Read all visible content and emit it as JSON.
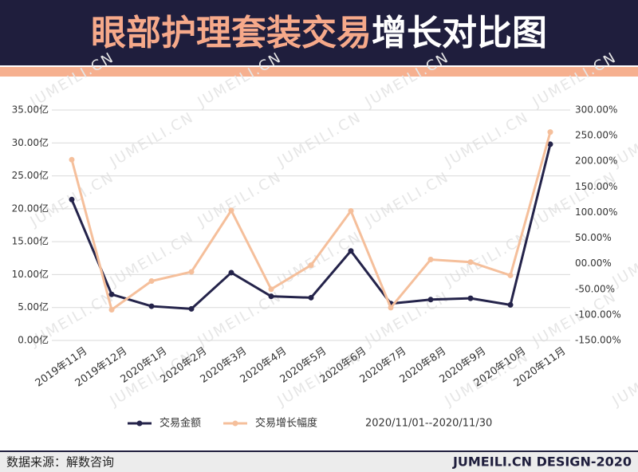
{
  "chart_data": {
    "type": "line",
    "title_highlight": "眼部护理套装交易",
    "title_rest": "增长对比图",
    "categories": [
      "2019年11月",
      "2019年12月",
      "2020年1月",
      "2020年2月",
      "2020年3月",
      "2020年4月",
      "2020年5月",
      "2020年6月",
      "2020年7月",
      "2020年8月",
      "2020年9月",
      "2020年10月",
      "2020年11月"
    ],
    "series": [
      {
        "name": "交易金额",
        "color": "#24234a",
        "values": [
          21.4,
          7.0,
          5.2,
          4.8,
          10.3,
          6.7,
          6.5,
          13.6,
          5.6,
          6.2,
          6.4,
          5.4,
          29.8
        ]
      },
      {
        "name": "交易增长幅度",
        "color": "#f5bf9b",
        "axis": "y2",
        "values": [
          203,
          -90,
          -34,
          -16,
          104,
          -50,
          -3,
          103,
          -86,
          8,
          3,
          -23,
          257
        ]
      }
    ],
    "ylim": [
      0,
      35
    ],
    "yticks": [
      {
        "value": 0,
        "label": "0.00亿"
      },
      {
        "value": 5,
        "label": "5.00亿"
      },
      {
        "value": 10,
        "label": "10.00亿"
      },
      {
        "value": 15,
        "label": "15.00亿"
      },
      {
        "value": 20,
        "label": "20.00亿"
      },
      {
        "value": 25,
        "label": "25.00亿"
      },
      {
        "value": 30,
        "label": "30.00亿"
      },
      {
        "value": 35,
        "label": "35.00亿"
      }
    ],
    "y2lim": [
      -150,
      300
    ],
    "y2ticks": [
      {
        "value": -150,
        "label": "-150.00%"
      },
      {
        "value": -100,
        "label": "-100.00%"
      },
      {
        "value": -50,
        "label": "-50.00%"
      },
      {
        "value": 0,
        "label": "00.00%"
      },
      {
        "value": 50,
        "label": "50.00%"
      },
      {
        "value": 100,
        "label": "100.00%"
      },
      {
        "value": 150,
        "label": "150.00%"
      },
      {
        "value": 200,
        "label": "200.00%"
      },
      {
        "value": 250,
        "label": "250.00%"
      },
      {
        "value": 300,
        "label": "300.00%"
      }
    ],
    "grid": true,
    "date_range": "2020/11/01--2020/11/30",
    "source": "数据来源：解数咨询",
    "credit": "JUMEILI.CN DESIGN-2020",
    "watermark": "JUMEILI.CN"
  }
}
